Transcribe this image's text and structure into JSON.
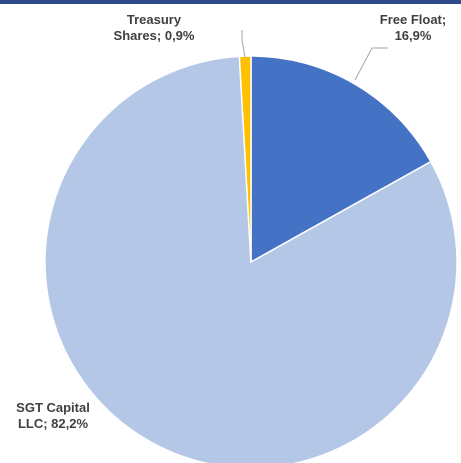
{
  "chart_data": {
    "type": "pie",
    "slices": [
      {
        "label_lines": [
          "Free Float;",
          "16,9%"
        ],
        "category": "Free Float",
        "value": 16.9,
        "color": "#4472c4"
      },
      {
        "label_lines": [
          "SGT Capital",
          "LLC; 82,2%"
        ],
        "category": "SGT Capital LLC",
        "value": 82.2,
        "color": "#b4c7e7"
      },
      {
        "label_lines": [
          "Treasury",
          "Shares; 0,9%"
        ],
        "category": "Treasury Shares",
        "value": 0.9,
        "color": "#ffc000"
      }
    ],
    "start_angle_deg": 0,
    "direction": "clockwise",
    "legend": "none",
    "data_labels": "outside"
  },
  "colors": {
    "top_bar": "#2e4c8c",
    "leader_line": "#a6a6a6",
    "slice_border": "#ffffff"
  }
}
